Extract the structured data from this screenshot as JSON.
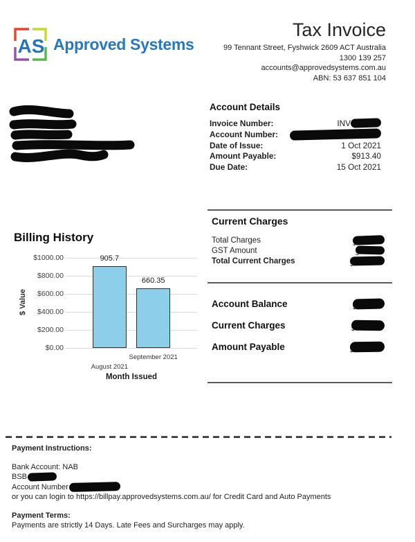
{
  "brand": {
    "logo_text": "AS",
    "name": "Approved Systems",
    "colors": {
      "blue": "#2878BE",
      "red": "#E8432D",
      "chartreuse": "#C5D831",
      "purple": "#9455A4",
      "green": "#55B948"
    }
  },
  "header": {
    "title": "Tax Invoice",
    "address": "99 Tennant Street, Fyshwick 2609 ACT Australia",
    "phone": "1300 139 257",
    "email": "accounts@approvedsystems.com.au",
    "abn": "ABN: 53 637 851 104"
  },
  "account_details": {
    "heading": "Account Details",
    "rows": [
      {
        "label": "Invoice Number:",
        "value": "INV",
        "redacted": true
      },
      {
        "label": "Account Number:",
        "value": "",
        "redacted": true
      },
      {
        "label": "Date of Issue:",
        "value": "1 Oct 2021",
        "redacted": false
      },
      {
        "label": "Amount Payable:",
        "value": "$913.40",
        "redacted": false
      },
      {
        "label": "Due Date:",
        "value": "15 Oct 2021",
        "redacted": false
      }
    ]
  },
  "current_charges": {
    "heading": "Current Charges",
    "currency_hint": "$",
    "rows": [
      {
        "label": "Total Charges",
        "bold": false,
        "value_redacted": true
      },
      {
        "label": "GST Amount",
        "bold": false,
        "value_redacted": true
      },
      {
        "label": "Total Current Charges",
        "bold": true,
        "value_redacted": true
      }
    ]
  },
  "summary": {
    "currency_hint": "$",
    "rows": [
      {
        "label": "Account Balance",
        "value_redacted": true
      },
      {
        "label": "Current Charges",
        "value_redacted": true
      },
      {
        "label": "Amount Payable",
        "value_redacted": true
      }
    ]
  },
  "chart_data": {
    "type": "bar",
    "title": "Billing History",
    "categories": [
      "August 2021",
      "September 2021"
    ],
    "values": [
      905.7,
      660.35
    ],
    "data_labels": [
      "905.7",
      "660.35"
    ],
    "xlabel": "Month Issued",
    "ylabel": "$ Value",
    "ylim": [
      0,
      1000
    ],
    "ytick_step": 200,
    "ytick_labels": [
      "$1000.00",
      "$800.00",
      "$600.00",
      "$400.00",
      "$200.00",
      "$0.00"
    ],
    "grid": true,
    "legend": "none",
    "bar_color": "#8DCFE9",
    "bar_border": "#2F2F2F",
    "grid_color": "#d9d9d9"
  },
  "payment": {
    "instructions_heading": "Payment Instructions:",
    "bank_account": "Bank Account: NAB",
    "bsb_label": "BSB",
    "account_number_label": "Account Number",
    "login_line": "or you can login to https://billpay.approvedsystems.com.au/ for Credit Card and Auto Payments",
    "terms_heading": "Payment Terms:",
    "terms_line": "Payments are strictly 14 Days. Late Fees and Surcharges may apply."
  }
}
